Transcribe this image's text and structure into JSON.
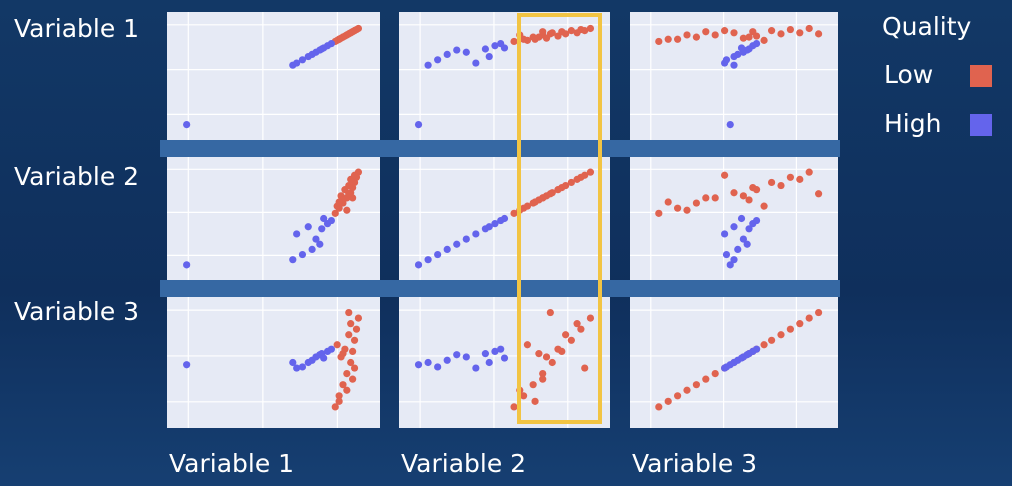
{
  "chart_data": {
    "type": "scatter_matrix",
    "variables": [
      "Variable 1",
      "Variable 2",
      "Variable 3"
    ],
    "xlim": [
      0,
      100
    ],
    "ylim": [
      0,
      100
    ],
    "grid": true,
    "legend_title": "Quality",
    "legend": "right",
    "series": [
      {
        "name": "Low",
        "color": "#e0634f",
        "values": [
          [
            82,
            84,
            86,
            88,
            90,
            91,
            92,
            93,
            94,
            85,
            87,
            89,
            90,
            83,
            86,
            92,
            91,
            88,
            84,
            89
          ],
          [
            55,
            60,
            65,
            70,
            75,
            80,
            85,
            90,
            95,
            72,
            78,
            82,
            88,
            62,
            68,
            92,
            70,
            58,
            66,
            74
          ],
          [
            10,
            20,
            30,
            40,
            50,
            60,
            70,
            80,
            90,
            55,
            62,
            75,
            85,
            66,
            58,
            45,
            35,
            25,
            15,
            95
          ]
        ]
      },
      {
        "name": "High",
        "color": "#6464ec",
        "values": [
          [
            5,
            60,
            65,
            70,
            72,
            75,
            78,
            80,
            62,
            68,
            74,
            76
          ],
          [
            5,
            10,
            15,
            20,
            30,
            40,
            45,
            48,
            35,
            42,
            25,
            50
          ],
          [
            48,
            50,
            46,
            52,
            55,
            58,
            60,
            62,
            45,
            50,
            57,
            54
          ]
        ]
      }
    ]
  }
}
